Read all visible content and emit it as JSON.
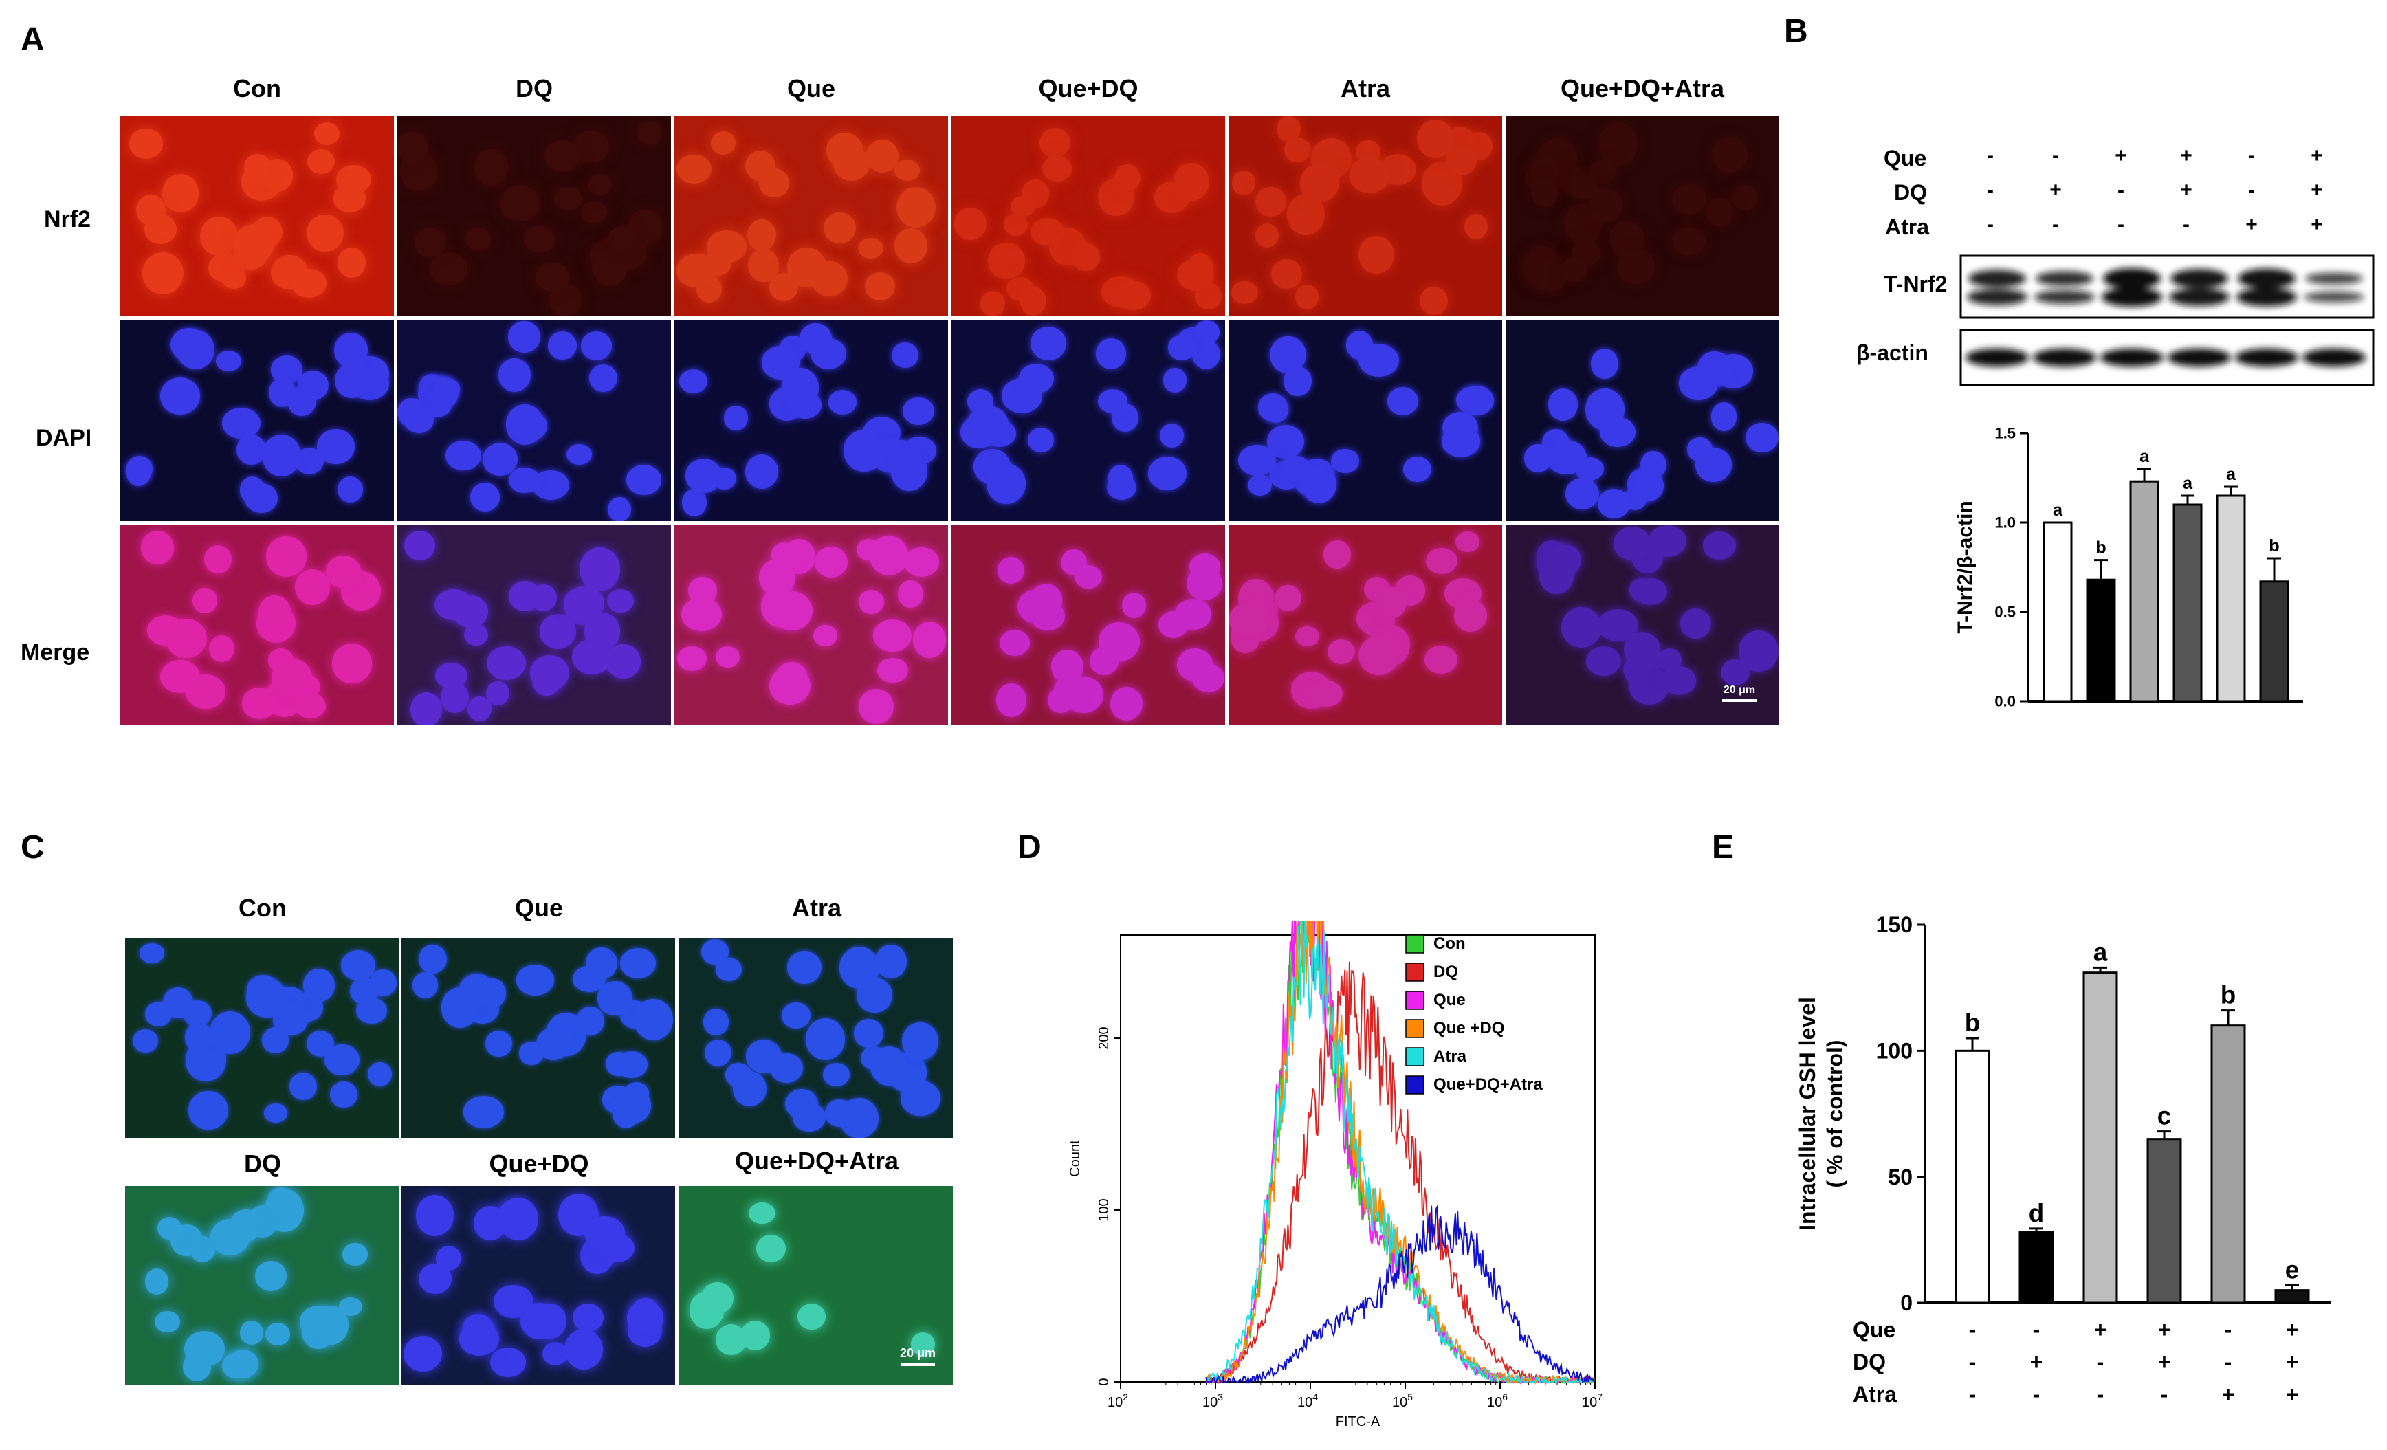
{
  "panels": {
    "A": "A",
    "B": "B",
    "C": "C",
    "D": "D",
    "E": "E"
  },
  "panelA": {
    "columns": [
      "Con",
      "DQ",
      "Que",
      "Que+DQ",
      "Atra",
      "Que+DQ+Atra"
    ],
    "rows": [
      "Nrf2",
      "DAPI",
      "Merge"
    ],
    "scale": "20 μm"
  },
  "panelB": {
    "treatments": [
      {
        "name": "Que",
        "signs": [
          "-",
          "-",
          "+",
          "+",
          "-",
          "+"
        ]
      },
      {
        "name": "DQ",
        "signs": [
          "-",
          "+",
          "-",
          "+",
          "-",
          "+"
        ]
      },
      {
        "name": "Atra",
        "signs": [
          "-",
          "-",
          "-",
          "-",
          "+",
          "+"
        ]
      }
    ],
    "blots": [
      "T-Nrf2",
      "β-actin"
    ]
  },
  "panelC": {
    "top": [
      "Con",
      "Que",
      "Atra"
    ],
    "bottom": [
      "DQ",
      "Que+DQ",
      "Que+DQ+Atra"
    ],
    "scale": "20 μm"
  },
  "colors": {
    "bar_white": "#ffffff",
    "bar_black": "#000000",
    "bar_lightgray": "#bdbdbd",
    "bar_darkgray": "#555555",
    "bar_silver": "#d6d6d6",
    "bar_charcoal": "#333333"
  },
  "chart_data": [
    {
      "id": "B",
      "type": "bar",
      "ylabel": "T-Nrf2/β-actin",
      "ylim": [
        0,
        1.5
      ],
      "yticks": [
        "0.0",
        "0.5",
        "1.0",
        "1.5"
      ],
      "values": [
        1.0,
        0.68,
        1.23,
        1.1,
        1.15,
        0.67
      ],
      "errors": [
        0.0,
        0.11,
        0.07,
        0.05,
        0.05,
        0.13
      ],
      "letters": [
        "a",
        "b",
        "a",
        "a",
        "a",
        "b"
      ],
      "fills": [
        "#ffffff",
        "#000000",
        "#aaaaaa",
        "#555555",
        "#d6d6d6",
        "#333333"
      ]
    },
    {
      "id": "E",
      "type": "bar",
      "ylabel": "Intracellular GSH level",
      "ylabel2": "( % of control)",
      "ylim": [
        0,
        150
      ],
      "yticks": [
        "0",
        "50",
        "100",
        "150"
      ],
      "values": [
        100,
        28,
        131,
        65,
        110,
        5
      ],
      "errors": [
        5,
        1.5,
        2,
        3,
        6,
        2
      ],
      "letters": [
        "b",
        "d",
        "a",
        "c",
        "b",
        "e"
      ],
      "fills": [
        "#ffffff",
        "#000000",
        "#bdbdbd",
        "#555555",
        "#a0a0a0",
        "#111111"
      ],
      "treatments": [
        {
          "name": "Que",
          "signs": [
            "-",
            "-",
            "+",
            "+",
            "-",
            "+"
          ]
        },
        {
          "name": "DQ",
          "signs": [
            "-",
            "+",
            "-",
            "+",
            "-",
            "+"
          ]
        },
        {
          "name": "Atra",
          "signs": [
            "-",
            "-",
            "-",
            "-",
            "+",
            "+"
          ]
        }
      ]
    },
    {
      "id": "D",
      "type": "line",
      "xlabel": "FITC-A",
      "ylabel": "Count",
      "xscale": "log",
      "xlim": [
        100,
        10000000
      ],
      "ylim": [
        0,
        260
      ],
      "xticks": [
        "10",
        "10",
        "10",
        "10",
        "10",
        "10"
      ],
      "xtick_exps": [
        "2",
        "3",
        "4",
        "5",
        "6",
        "7"
      ],
      "yticks": [
        "0",
        "100",
        "200"
      ],
      "series": [
        {
          "name": "Con",
          "color": "#33cc33",
          "mu": 3.95,
          "sigma": 0.28,
          "peak": 240,
          "tail": 0.35
        },
        {
          "name": "DQ",
          "color": "#dd2222",
          "mu": 4.3,
          "sigma": 0.45,
          "peak": 170,
          "tail": 0.55
        },
        {
          "name": "Que",
          "color": "#ee22ee",
          "mu": 3.93,
          "sigma": 0.28,
          "peak": 245,
          "tail": 0.35
        },
        {
          "name": "Que +DQ",
          "color": "#ff8800",
          "mu": 3.98,
          "sigma": 0.3,
          "peak": 232,
          "tail": 0.38
        },
        {
          "name": "Atra",
          "color": "#22dddd",
          "mu": 3.95,
          "sigma": 0.32,
          "peak": 215,
          "tail": 0.4
        },
        {
          "name": "Que+DQ+Atra",
          "color": "#1111cc",
          "mu": 5.4,
          "sigma": 0.55,
          "peak": 90,
          "tail": 0.0
        }
      ]
    }
  ]
}
